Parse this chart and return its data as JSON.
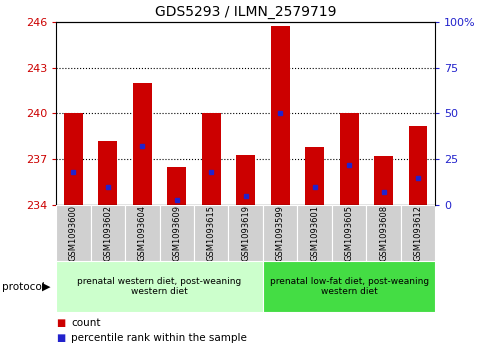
{
  "title": "GDS5293 / ILMN_2579719",
  "samples": [
    "GSM1093600",
    "GSM1093602",
    "GSM1093604",
    "GSM1093609",
    "GSM1093615",
    "GSM1093619",
    "GSM1093599",
    "GSM1093601",
    "GSM1093605",
    "GSM1093608",
    "GSM1093612"
  ],
  "bar_values": [
    240.0,
    238.2,
    242.0,
    236.5,
    240.0,
    237.3,
    245.7,
    237.8,
    240.0,
    237.2,
    239.2
  ],
  "percentile_values": [
    18,
    10,
    32,
    3,
    18,
    5,
    50,
    10,
    22,
    7,
    15
  ],
  "y_min": 234,
  "y_max": 246,
  "y_ticks": [
    234,
    237,
    240,
    243,
    246
  ],
  "y2_ticks": [
    0,
    25,
    50,
    75,
    100
  ],
  "bar_color": "#cc0000",
  "percentile_color": "#2222cc",
  "group1_label": "prenatal western diet, post-weaning\nwestern diet",
  "group2_label": "prenatal low-fat diet, post-weaning\nwestern diet",
  "group1_count": 6,
  "group2_count": 5,
  "group1_bg": "#ccffcc",
  "group2_bg": "#44dd44",
  "sample_bg": "#d0d0d0",
  "legend_count_label": "count",
  "legend_pct_label": "percentile rank within the sample",
  "protocol_label": "protocol"
}
